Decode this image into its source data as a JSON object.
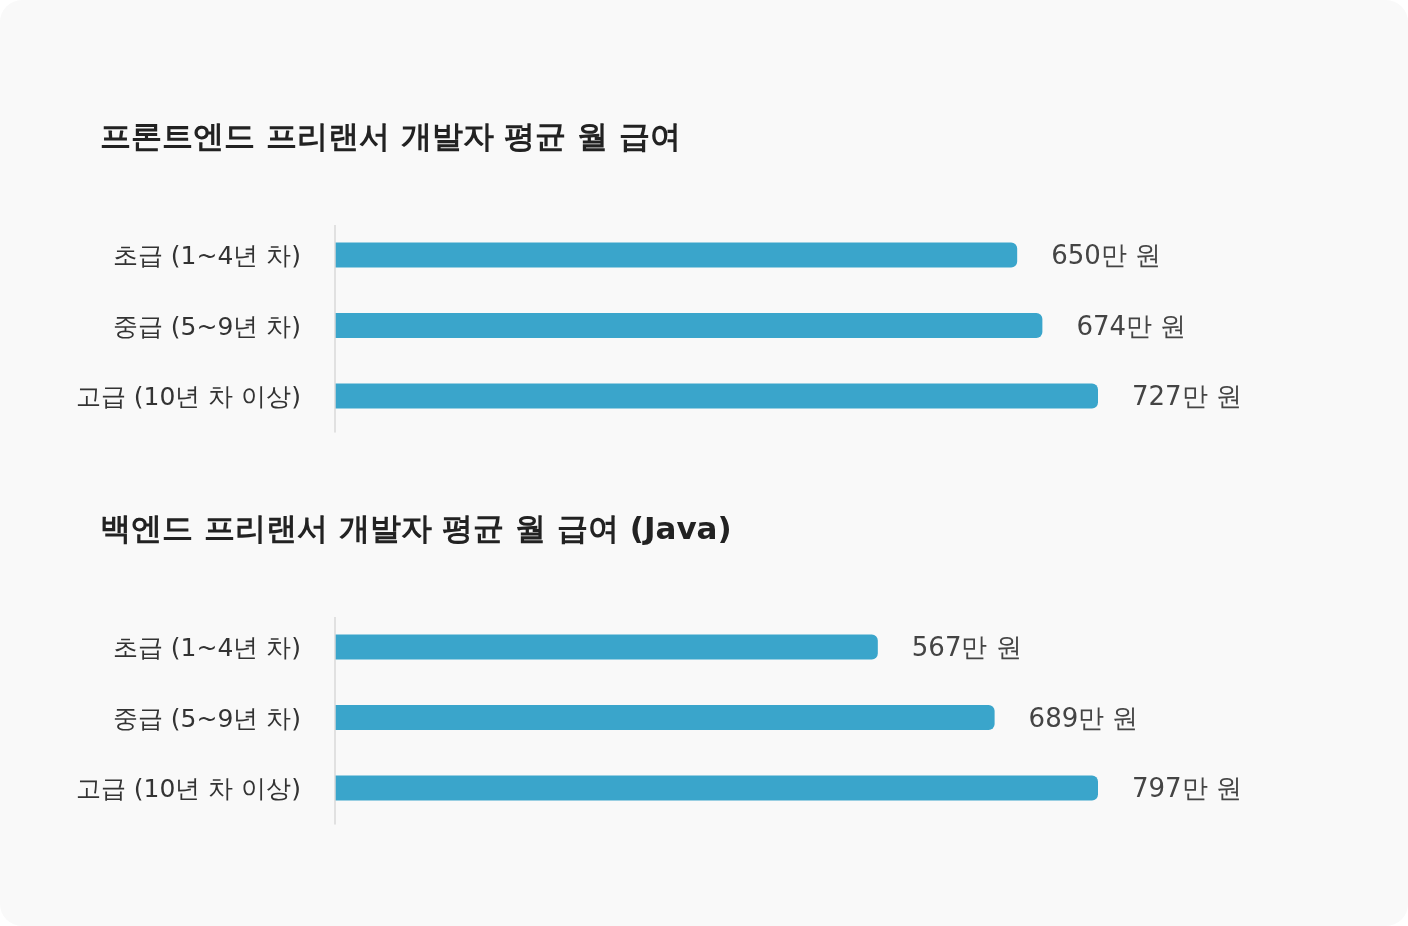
{
  "chart_data": [
    {
      "type": "bar",
      "orientation": "horizontal",
      "title": "프론트엔드 프리랜서 개발자 평균 월 급여",
      "categories": [
        "초급 (1~4년 차)",
        "중급 (5~9년 차)",
        "고급 (10년 차 이상)"
      ],
      "values": [
        650,
        674,
        727
      ],
      "value_labels": [
        "650만 원",
        "674만 원",
        "727만 원"
      ],
      "color": "#3aa5cb"
    },
    {
      "type": "bar",
      "orientation": "horizontal",
      "title": "백엔드 프리랜서 개발자 평균 월 급여 (Java)",
      "categories": [
        "초급 (1~4년 차)",
        "중급 (5~9년 차)",
        "고급 (10년 차 이상)"
      ],
      "values": [
        567,
        689,
        797
      ],
      "value_labels": [
        "567만 원",
        "689만 원",
        "797만 원"
      ],
      "color": "#3aa5cb"
    }
  ]
}
